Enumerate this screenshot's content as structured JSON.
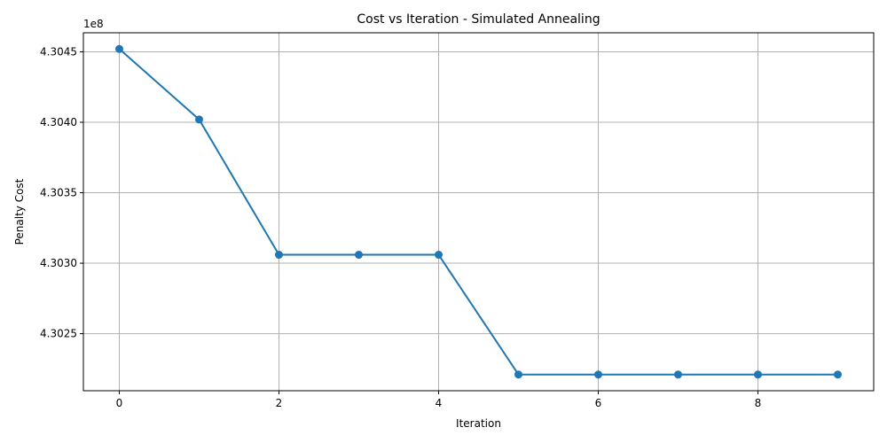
{
  "chart_data": {
    "type": "line",
    "title": "Cost vs Iteration - Simulated Annealing",
    "xlabel": "Iteration",
    "ylabel": "Penalty Cost",
    "offset_label": "1e8",
    "x": [
      0,
      1,
      2,
      3,
      4,
      5,
      6,
      7,
      8,
      9
    ],
    "y": [
      4.30452,
      4.30402,
      4.30306,
      4.30306,
      4.30306,
      4.30221,
      4.30221,
      4.30221,
      4.30221,
      4.30221
    ],
    "xlim": [
      -0.45,
      9.45
    ],
    "ylim": [
      4.302095,
      4.304635
    ],
    "xticks": [
      0,
      2,
      4,
      6,
      8
    ],
    "xtick_labels": [
      "0",
      "2",
      "4",
      "6",
      "8"
    ],
    "yticks": [
      4.3025,
      4.303,
      4.3035,
      4.304,
      4.3045
    ],
    "ytick_labels": [
      "4.3025",
      "4.3030",
      "4.3035",
      "4.3040",
      "4.3045"
    ],
    "grid": true,
    "line_color": "#1f77b4"
  }
}
